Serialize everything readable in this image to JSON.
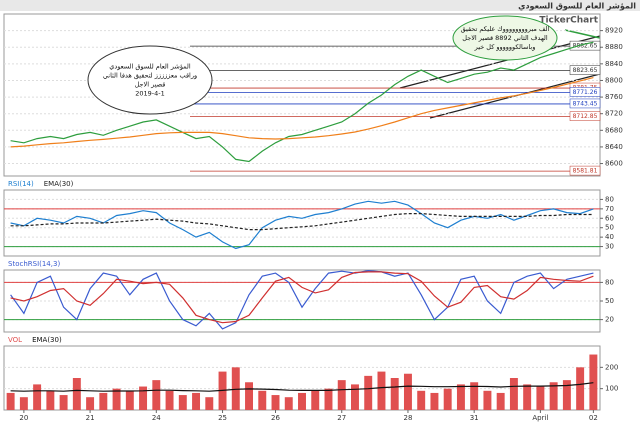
{
  "chart_data": [
    {
      "type": "line",
      "title": "المؤشر العام للسوق السعودي",
      "brand": "TickerChart",
      "ylim": [
        8570,
        8960
      ],
      "yticks": [
        8600,
        8640,
        8680,
        8720,
        8760,
        8800,
        8840,
        8880,
        8920
      ],
      "grid": true,
      "levels": [
        8882.65,
        8823.65,
        8781.75,
        8771.26,
        8743.45,
        8712.85,
        8581.81
      ],
      "level_colors": [
        "#333333",
        "#333333",
        "#c0392b",
        "#1f3fbf",
        "#1f3fbf",
        "#c0392b",
        "#c0392b"
      ],
      "annotations": [
        {
          "lines": [
            "المؤشر العام للسوق السعودي",
            "وراقب معززززز لتحقيق هدفا الثاني",
            "قصير الاجل",
            "2019-4-1"
          ]
        },
        {
          "lines": [
            "الف مبرووووووووك عليكم تحقيق",
            "الهدف الثاني 8892 قصير الاجل",
            "وباسالكوووووو كل خير"
          ]
        }
      ],
      "series": [
        {
          "color": "#2e9e3e",
          "values": [
            8655,
            8650,
            8660,
            8665,
            8660,
            8670,
            8675,
            8668,
            8680,
            8690,
            8700,
            8705,
            8690,
            8675,
            8660,
            8665,
            8640,
            8610,
            8605,
            8630,
            8650,
            8665,
            8670,
            8680,
            8690,
            8700,
            8720,
            8745,
            8765,
            8790,
            8810,
            8825,
            8810,
            8795,
            8805,
            8815,
            8820,
            8830,
            8825,
            8840,
            8855,
            8865,
            8875,
            8885,
            8892
          ]
        },
        {
          "color": "#f07f1a",
          "values": [
            8640,
            8642,
            8645,
            8648,
            8650,
            8653,
            8656,
            8658,
            8661,
            8664,
            8668,
            8672,
            8674,
            8675,
            8675,
            8675,
            8672,
            8667,
            8662,
            8660,
            8659,
            8660,
            8662,
            8664,
            8667,
            8671,
            8676,
            8683,
            8691,
            8700,
            8710,
            8720,
            8728,
            8734,
            8740,
            8746,
            8752,
            8758,
            8763,
            8769,
            8776,
            8783,
            8791,
            8799,
            8807
          ]
        }
      ]
    },
    {
      "type": "line",
      "ylim": [
        20,
        90
      ],
      "yticks": [
        30,
        40,
        50,
        60,
        70,
        80
      ],
      "grid": true,
      "hlines": [
        70,
        30
      ],
      "hline_colors": [
        "#e04040",
        "#2e9e3e"
      ],
      "series": [
        {
          "name": "RSI(14)",
          "color": "#1e7fd0",
          "values": [
            55,
            52,
            60,
            58,
            55,
            62,
            60,
            55,
            63,
            65,
            68,
            66,
            55,
            48,
            40,
            45,
            35,
            28,
            32,
            50,
            58,
            62,
            60,
            64,
            66,
            70,
            75,
            78,
            76,
            78,
            74,
            65,
            55,
            50,
            58,
            62,
            60,
            64,
            58,
            63,
            68,
            70,
            66,
            65,
            70
          ]
        },
        {
          "name": "EMA(30)",
          "color": "#222222",
          "dash": true,
          "values": [
            52,
            52,
            53,
            54,
            54,
            55,
            55,
            55,
            56,
            57,
            58,
            59,
            58,
            57,
            55,
            54,
            52,
            50,
            48,
            48,
            49,
            50,
            51,
            52,
            54,
            56,
            58,
            60,
            62,
            64,
            65,
            65,
            64,
            63,
            62,
            62,
            62,
            62,
            62,
            62,
            63,
            63,
            64,
            64,
            64
          ]
        }
      ]
    },
    {
      "type": "line",
      "ylim": [
        0,
        100
      ],
      "yticks": [
        20,
        50,
        80
      ],
      "grid": true,
      "hlines": [
        80,
        20
      ],
      "hline_colors": [
        "#e04040",
        "#2e9e3e"
      ],
      "series": [
        {
          "name": "StochRSI(14,3)",
          "color": "#3a5bd0",
          "values": [
            60,
            30,
            80,
            90,
            40,
            20,
            70,
            95,
            90,
            60,
            85,
            95,
            50,
            20,
            10,
            30,
            5,
            15,
            60,
            90,
            95,
            80,
            40,
            70,
            95,
            98,
            95,
            99,
            97,
            90,
            95,
            60,
            20,
            40,
            85,
            90,
            50,
            30,
            80,
            90,
            95,
            70,
            85,
            90,
            95
          ]
        },
        {
          "color": "#d03030",
          "values": [
            55,
            50,
            57,
            67,
            70,
            50,
            43,
            62,
            85,
            82,
            78,
            80,
            77,
            55,
            27,
            20,
            15,
            17,
            27,
            55,
            82,
            88,
            72,
            63,
            68,
            88,
            96,
            97,
            97,
            95,
            94,
            82,
            58,
            40,
            48,
            72,
            75,
            57,
            53,
            67,
            88,
            85,
            83,
            82,
            90
          ]
        }
      ]
    },
    {
      "type": "bar",
      "ylim": [
        0,
        300
      ],
      "yticks": [
        100,
        200
      ],
      "grid": true,
      "categories": [
        null,
        "20",
        null,
        null,
        null,
        null,
        "21",
        null,
        null,
        null,
        null,
        "24",
        null,
        null,
        null,
        null,
        "25",
        null,
        null,
        null,
        "26",
        null,
        null,
        null,
        null,
        "27",
        null,
        null,
        null,
        null,
        "28",
        null,
        null,
        null,
        null,
        "31",
        null,
        null,
        null,
        null,
        "April",
        null,
        null,
        null,
        "02"
      ],
      "series": [
        {
          "name": "VOL",
          "type": "bar",
          "color": "#e05050",
          "values": [
            80,
            60,
            120,
            90,
            70,
            150,
            60,
            80,
            100,
            90,
            110,
            140,
            90,
            70,
            80,
            60,
            180,
            200,
            130,
            90,
            70,
            60,
            80,
            90,
            100,
            140,
            120,
            160,
            180,
            150,
            170,
            90,
            80,
            100,
            120,
            130,
            90,
            80,
            150,
            120,
            110,
            130,
            140,
            200,
            260
          ]
        },
        {
          "name": "EMA(30)",
          "type": "line",
          "color": "#111111",
          "values": [
            90,
            88,
            90,
            90,
            88,
            92,
            90,
            88,
            89,
            89,
            90,
            93,
            93,
            91,
            90,
            88,
            92,
            97,
            99,
            98,
            96,
            93,
            92,
            92,
            92,
            95,
            97,
            100,
            105,
            108,
            112,
            111,
            109,
            109,
            110,
            111,
            110,
            108,
            111,
            112,
            112,
            113,
            115,
            120,
            128
          ]
        }
      ]
    }
  ]
}
